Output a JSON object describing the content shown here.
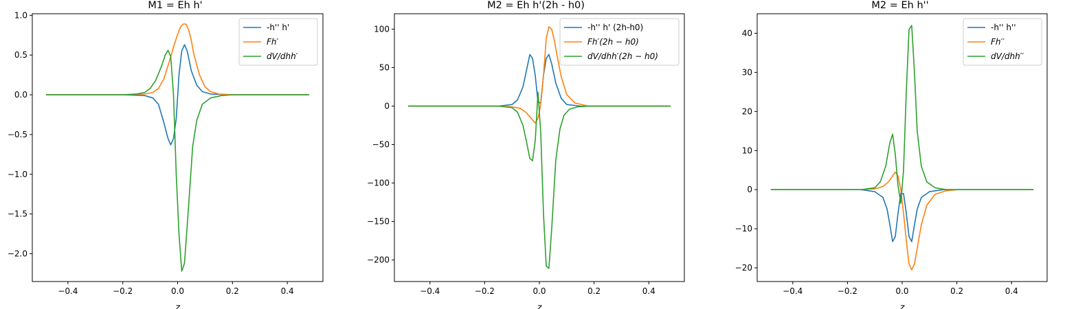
{
  "chart_data": [
    {
      "type": "line",
      "title": "M1 = Eh h'",
      "xlabel": "z",
      "ylabel": "",
      "xlim": [
        -0.53,
        0.53
      ],
      "ylim": [
        -2.35,
        1.02
      ],
      "xticks": [
        -0.4,
        -0.2,
        0.0,
        0.2,
        0.4
      ],
      "xtick_labels": [
        "−0.4",
        "−0.2",
        "0.0",
        "0.2",
        "0.4"
      ],
      "yticks": [
        1.0,
        0.5,
        0.0,
        -0.5,
        -1.0,
        -1.5,
        -2.0
      ],
      "ytick_labels": [
        "1.0",
        "0.5",
        "0.0",
        "−0.5",
        "−1.0",
        "−1.5",
        "−2.0"
      ],
      "legend_position": "top-right",
      "series": [
        {
          "name": "-h'' h'",
          "color": "#1f77b4",
          "x": [
            -0.48,
            -0.2,
            -0.12,
            -0.09,
            -0.07,
            -0.05,
            -0.035,
            -0.025,
            -0.015,
            -0.005,
            0.005,
            0.015,
            0.025,
            0.035,
            0.05,
            0.07,
            0.09,
            0.12,
            0.2,
            0.48
          ],
          "y": [
            0,
            0,
            -0.01,
            -0.04,
            -0.12,
            -0.35,
            -0.55,
            -0.63,
            -0.55,
            -0.3,
            0.25,
            0.55,
            0.63,
            0.55,
            0.3,
            0.12,
            0.04,
            0.01,
            0,
            0
          ]
        },
        {
          "name": "Fh′",
          "color": "#ff7f0e",
          "x": [
            -0.48,
            -0.2,
            -0.12,
            -0.09,
            -0.07,
            -0.05,
            -0.03,
            -0.015,
            0.0,
            0.01,
            0.02,
            0.03,
            0.04,
            0.05,
            0.06,
            0.08,
            0.1,
            0.12,
            0.15,
            0.2,
            0.48
          ],
          "y": [
            0,
            0,
            0.01,
            0.03,
            0.08,
            0.2,
            0.42,
            0.6,
            0.76,
            0.85,
            0.89,
            0.89,
            0.82,
            0.68,
            0.5,
            0.25,
            0.1,
            0.04,
            0.01,
            0,
            0
          ]
        },
        {
          "name": "dV/dhh′",
          "color": "#2ca02c",
          "x": [
            -0.48,
            -0.2,
            -0.15,
            -0.12,
            -0.1,
            -0.08,
            -0.06,
            -0.045,
            -0.035,
            -0.025,
            -0.015,
            -0.005,
            0.005,
            0.015,
            0.025,
            0.04,
            0.055,
            0.07,
            0.09,
            0.12,
            0.16,
            0.2,
            0.48
          ],
          "y": [
            0,
            0,
            0.01,
            0.03,
            0.08,
            0.18,
            0.35,
            0.5,
            0.56,
            0.48,
            0.0,
            -1.0,
            -1.75,
            -2.22,
            -2.12,
            -1.4,
            -0.65,
            -0.32,
            -0.12,
            -0.04,
            -0.01,
            0,
            0
          ]
        }
      ]
    },
    {
      "type": "line",
      "title": "M2 = Eh h'(2h - h0)",
      "xlabel": "z",
      "ylabel": "",
      "xlim": [
        -0.53,
        0.53
      ],
      "ylim": [
        -228,
        120
      ],
      "xticks": [
        -0.4,
        -0.2,
        0.0,
        0.2,
        0.4
      ],
      "xtick_labels": [
        "−0.4",
        "−0.2",
        "0.0",
        "0.2",
        "0.4"
      ],
      "yticks": [
        100,
        50,
        0,
        -50,
        -100,
        -150,
        -200
      ],
      "ytick_labels": [
        "100",
        "50",
        "0",
        "−50",
        "−100",
        "−150",
        "−200"
      ],
      "legend_position": "top-right",
      "series": [
        {
          "name": "-h'' h' (2h-h0)",
          "color": "#1f77b4",
          "x": [
            -0.48,
            -0.15,
            -0.1,
            -0.08,
            -0.06,
            -0.045,
            -0.035,
            -0.025,
            -0.015,
            -0.005,
            0.005,
            0.015,
            0.025,
            0.035,
            0.045,
            0.06,
            0.08,
            0.1,
            0.15,
            0.48
          ],
          "y": [
            0,
            0,
            2,
            8,
            25,
            50,
            67,
            62,
            40,
            5,
            4,
            40,
            62,
            67,
            55,
            30,
            10,
            2,
            0,
            0
          ]
        },
        {
          "name": "Fh′(2h − h0)",
          "color": "#ff7f0e",
          "x": [
            -0.48,
            -0.15,
            -0.1,
            -0.07,
            -0.05,
            -0.03,
            -0.015,
            -0.005,
            0.005,
            0.015,
            0.025,
            0.035,
            0.045,
            0.055,
            0.065,
            0.08,
            0.1,
            0.13,
            0.18,
            0.48
          ],
          "y": [
            0,
            0,
            -1,
            -3,
            -8,
            -16,
            -22,
            -16,
            2,
            40,
            88,
            103,
            100,
            85,
            65,
            38,
            15,
            4,
            0,
            0
          ]
        },
        {
          "name": "dV/dhh′(2h − h0)",
          "color": "#2ca02c",
          "x": [
            -0.48,
            -0.15,
            -0.1,
            -0.08,
            -0.06,
            -0.045,
            -0.035,
            -0.025,
            -0.015,
            -0.005,
            0.005,
            0.015,
            0.025,
            0.035,
            0.045,
            0.06,
            0.075,
            0.09,
            0.11,
            0.14,
            0.18,
            0.48
          ],
          "y": [
            0,
            0,
            -2,
            -8,
            -25,
            -50,
            -68,
            -71,
            -45,
            18,
            -35,
            -140,
            -208,
            -211,
            -160,
            -70,
            -30,
            -12,
            -4,
            -1,
            0,
            0
          ]
        }
      ]
    },
    {
      "type": "line",
      "title": "M2 = Eh h''",
      "xlabel": "z",
      "ylabel": "",
      "xlim": [
        -0.53,
        0.53
      ],
      "ylim": [
        -23.5,
        45
      ],
      "xticks": [
        -0.4,
        -0.2,
        0.0,
        0.2,
        0.4
      ],
      "xtick_labels": [
        "−0.4",
        "−0.2",
        "0.0",
        "0.2",
        "0.4"
      ],
      "yticks": [
        40,
        30,
        20,
        10,
        0,
        -10,
        -20
      ],
      "ytick_labels": [
        "40",
        "30",
        "20",
        "10",
        "0",
        "−10",
        "−20"
      ],
      "legend_position": "top-right",
      "series": [
        {
          "name": "-h'' h''",
          "color": "#1f77b4",
          "x": [
            -0.48,
            -0.15,
            -0.1,
            -0.07,
            -0.055,
            -0.045,
            -0.035,
            -0.025,
            -0.015,
            -0.005,
            0.005,
            0.015,
            0.025,
            0.035,
            0.045,
            0.055,
            0.07,
            0.1,
            0.15,
            0.48
          ],
          "y": [
            0,
            0,
            -0.5,
            -2,
            -5,
            -9,
            -13.3,
            -12,
            -6,
            -1,
            -1,
            -6,
            -12,
            -13.3,
            -9,
            -5,
            -2,
            -0.5,
            0,
            0
          ]
        },
        {
          "name": "Fh′′",
          "color": "#ff7f0e",
          "x": [
            -0.48,
            -0.15,
            -0.1,
            -0.07,
            -0.05,
            -0.035,
            -0.025,
            -0.015,
            -0.005,
            0.005,
            0.015,
            0.025,
            0.035,
            0.045,
            0.055,
            0.07,
            0.09,
            0.12,
            0.16,
            0.2,
            0.48
          ],
          "y": [
            0,
            0,
            0.2,
            0.8,
            2,
            3.5,
            4.5,
            3.5,
            0,
            -6,
            -13,
            -19,
            -20.5,
            -19,
            -15,
            -9,
            -4,
            -1.2,
            -0.3,
            0,
            0
          ]
        },
        {
          "name": "dV/dhh′′",
          "color": "#2ca02c",
          "x": [
            -0.48,
            -0.15,
            -0.1,
            -0.08,
            -0.06,
            -0.045,
            -0.035,
            -0.025,
            -0.015,
            -0.005,
            0.005,
            0.015,
            0.025,
            0.035,
            0.045,
            0.055,
            0.07,
            0.09,
            0.12,
            0.16,
            0.48
          ],
          "y": [
            0,
            0,
            0.5,
            2,
            6,
            12,
            14.2,
            9,
            1,
            -3.5,
            5,
            25,
            41,
            42,
            30,
            15,
            6,
            2,
            0.5,
            0,
            0
          ]
        }
      ]
    }
  ]
}
